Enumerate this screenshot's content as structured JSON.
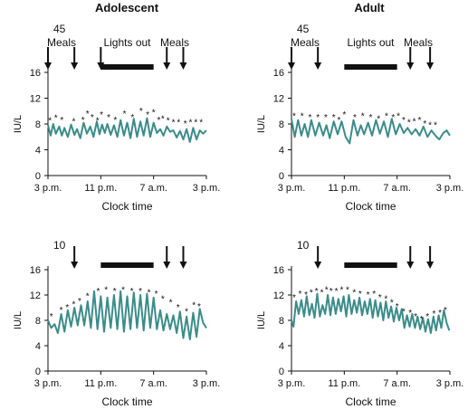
{
  "colors": {
    "series": "#3a8c8a",
    "ink": "#111111",
    "bar": "#111111"
  },
  "panels": [
    {
      "column_title": "Adolescent",
      "corner_number": "45",
      "meal_text_left": "Meals",
      "lights_text": "Lights out",
      "meal_text_right": "Meals",
      "arrow_hours": [
        15,
        19,
        23,
        33,
        35.5
      ],
      "lights_out": [
        23,
        31
      ],
      "chart_data": {
        "type": "line",
        "xlabel": "Clock time",
        "ylabel": "IU/L",
        "xlim": [
          15,
          39
        ],
        "ylim": [
          0,
          16
        ],
        "yticks": [
          "0",
          "4",
          "8",
          "12",
          "16"
        ],
        "xticks": [
          {
            "hour": 15,
            "label": "3 p.m."
          },
          {
            "hour": 23,
            "label": "11 p.m."
          },
          {
            "hour": 31,
            "label": "7 a.m."
          },
          {
            "hour": 39,
            "label": "3 p.m."
          }
        ],
        "series": [
          {
            "x": [
              15.0,
              15.4,
              15.8,
              16.2,
              16.7,
              17.1,
              17.5,
              18.0,
              18.5,
              19.0,
              19.4,
              19.9,
              20.4,
              20.9,
              21.4,
              21.9,
              22.4,
              22.8,
              23.2,
              23.6,
              24.0,
              24.5,
              25.0,
              25.5,
              26.0,
              26.5,
              27.0,
              27.5,
              28.0,
              28.5,
              29.0,
              29.5,
              30.0,
              30.5,
              31.0,
              31.5,
              32.0,
              32.5,
              33.0,
              33.5,
              34.0,
              34.5,
              35.0,
              35.5,
              36.0,
              36.5,
              37.0,
              37.5,
              38.0,
              38.5,
              39.0
            ],
            "y": [
              7.8,
              6.2,
              8.0,
              6.5,
              7.6,
              6.2,
              7.4,
              6.0,
              7.9,
              6.3,
              7.2,
              5.8,
              8.2,
              6.5,
              7.6,
              6.0,
              8.4,
              6.4,
              7.9,
              6.6,
              8.0,
              6.3,
              7.8,
              6.0,
              8.6,
              6.2,
              8.2,
              5.8,
              8.8,
              6.0,
              8.4,
              6.2,
              8.9,
              6.0,
              8.2,
              6.6,
              7.2,
              6.2,
              7.6,
              6.8,
              7.0,
              5.9,
              6.9,
              5.6,
              7.2,
              5.2,
              7.4,
              5.6,
              7.0,
              6.5,
              7.0
            ]
          }
        ],
        "asterisk_x": [
          15.3,
          16.2,
          17.1,
          18.9,
          20.3,
          21.0,
          21.7,
          22.5,
          23.1,
          24.2,
          25.2,
          26.6,
          27.8,
          29.1,
          30.1,
          31.0,
          31.8,
          32.4,
          33.2,
          34.0,
          34.8,
          35.8,
          36.6,
          37.4,
          38.2
        ],
        "asterisk_y": [
          8.9,
          9.3,
          9.0,
          8.8,
          9.0,
          10.0,
          9.4,
          8.9,
          9.8,
          9.4,
          9.0,
          10.0,
          9.4,
          10.4,
          9.8,
          10.2,
          9.0,
          9.2,
          8.9,
          8.6,
          8.6,
          8.4,
          8.6,
          8.6,
          8.6
        ],
        "asterisk_label": "*"
      }
    },
    {
      "column_title": "Adult",
      "corner_number": "45",
      "meal_text_left": "Meals",
      "lights_text": "Lights out",
      "meal_text_right": "Meals",
      "arrow_hours": [
        15,
        19,
        33,
        36
      ],
      "lights_out": [
        23,
        31
      ],
      "chart_data": {
        "type": "line",
        "xlabel": "Clock time",
        "ylabel": "IU/L",
        "xlim": [
          15,
          39
        ],
        "ylim": [
          0,
          16
        ],
        "yticks": [
          "0",
          "4",
          "8",
          "12",
          "16"
        ],
        "xticks": [
          {
            "hour": 15,
            "label": "3 p.m."
          },
          {
            "hour": 23,
            "label": "11 p.m."
          },
          {
            "hour": 31,
            "label": "7 a.m."
          },
          {
            "hour": 39,
            "label": "3 p.m."
          }
        ],
        "series": [
          {
            "x": [
              15.0,
              15.5,
              16.0,
              16.5,
              17.0,
              17.5,
              18.0,
              18.6,
              19.2,
              19.8,
              20.3,
              20.8,
              21.4,
              22.0,
              22.6,
              23.2,
              23.8,
              24.4,
              25.0,
              25.5,
              26.0,
              26.6,
              27.2,
              27.8,
              28.4,
              29.0,
              29.6,
              30.2,
              30.8,
              31.4,
              32.0,
              32.6,
              33.2,
              33.8,
              34.4,
              35.0,
              35.6,
              36.2,
              36.8,
              37.4,
              38.0,
              38.5,
              39.0
            ],
            "y": [
              8.8,
              6.0,
              8.6,
              6.2,
              8.0,
              6.0,
              8.6,
              6.2,
              8.2,
              6.2,
              7.8,
              5.8,
              8.4,
              6.4,
              8.4,
              6.0,
              5.0,
              8.6,
              6.2,
              7.8,
              6.4,
              8.2,
              6.2,
              8.6,
              6.5,
              8.4,
              6.0,
              8.8,
              6.4,
              8.0,
              6.6,
              7.4,
              6.4,
              7.2,
              6.2,
              7.6,
              6.0,
              7.0,
              6.2,
              5.6,
              6.6,
              7.0,
              6.2
            ]
          }
        ],
        "asterisk_x": [
          15.4,
          16.6,
          17.8,
          19.0,
          20.2,
          21.4,
          22.2,
          23.0,
          24.6,
          25.8,
          27.0,
          28.2,
          29.4,
          30.4,
          31.2,
          32.0,
          32.8,
          33.6,
          34.4,
          35.2,
          36.0,
          36.8
        ],
        "asterisk_y": [
          9.6,
          9.6,
          9.4,
          9.4,
          9.4,
          9.4,
          9.0,
          9.8,
          9.4,
          9.6,
          9.4,
          9.2,
          9.6,
          9.4,
          9.6,
          9.0,
          8.6,
          8.8,
          9.0,
          8.4,
          8.2,
          8.2
        ],
        "asterisk_label": "*"
      }
    },
    {
      "column_title": "",
      "corner_number": "10",
      "meal_text_left": "",
      "lights_text": "",
      "meal_text_right": "",
      "arrow_hours": [
        19,
        33,
        35.5
      ],
      "lights_out": [
        23,
        31
      ],
      "chart_data": {
        "type": "line",
        "xlabel": "Clock time",
        "ylabel": "IU/L",
        "xlim": [
          15,
          39
        ],
        "ylim": [
          0,
          16
        ],
        "yticks": [
          "0",
          "4",
          "8",
          "12",
          "16"
        ],
        "xticks": [
          {
            "hour": 15,
            "label": "3 p.m."
          },
          {
            "hour": 23,
            "label": "11 p.m."
          },
          {
            "hour": 31,
            "label": "7 a.m."
          },
          {
            "hour": 39,
            "label": "3 p.m."
          }
        ],
        "series": [
          {
            "x": [
              15.0,
              15.5,
              16.0,
              16.5,
              17.0,
              17.5,
              18.0,
              18.5,
              19.0,
              19.5,
              20.0,
              20.5,
              21.0,
              21.5,
              22.0,
              22.5,
              23.0,
              23.5,
              24.0,
              24.5,
              25.0,
              25.5,
              26.0,
              26.5,
              27.0,
              27.5,
              28.0,
              28.5,
              29.0,
              29.5,
              30.0,
              30.5,
              31.0,
              31.5,
              32.0,
              32.5,
              33.0,
              33.5,
              34.0,
              34.5,
              35.0,
              35.5,
              36.0,
              36.5,
              37.0,
              37.5,
              38.0,
              38.5,
              39.0
            ],
            "y": [
              8.0,
              6.8,
              7.4,
              6.0,
              9.0,
              6.2,
              9.6,
              7.0,
              10.0,
              7.2,
              10.4,
              7.2,
              11.0,
              6.8,
              12.6,
              6.6,
              11.8,
              6.2,
              11.6,
              6.8,
              12.0,
              6.6,
              12.6,
              6.2,
              11.8,
              6.6,
              12.4,
              6.8,
              12.0,
              6.4,
              12.2,
              6.8,
              11.6,
              6.6,
              9.6,
              6.4,
              9.0,
              6.6,
              8.8,
              6.0,
              9.4,
              5.2,
              8.6,
              5.0,
              9.2,
              5.4,
              9.8,
              7.6,
              6.8
            ]
          }
        ],
        "asterisk_x": [
          15.5,
          17.0,
          17.9,
          18.9,
          19.8,
          21.0,
          22.6,
          23.8,
          25.1,
          26.4,
          27.7,
          29.0,
          30.3,
          31.4,
          32.4,
          33.6,
          34.7,
          36.0,
          37.1,
          37.9
        ],
        "asterisk_y": [
          9.0,
          10.0,
          10.4,
          10.9,
          11.4,
          12.2,
          13.0,
          13.2,
          13.0,
          13.2,
          13.0,
          13.0,
          12.8,
          12.6,
          11.8,
          11.2,
          10.4,
          9.8,
          10.8,
          10.6
        ],
        "asterisk_label": "*"
      }
    },
    {
      "column_title": "",
      "corner_number": "10",
      "meal_text_left": "",
      "lights_text": "",
      "meal_text_right": "",
      "arrow_hours": [
        19,
        33,
        36
      ],
      "lights_out": [
        23,
        31
      ],
      "chart_data": {
        "type": "line",
        "xlabel": "Clock time",
        "ylabel": "IU/L",
        "xlim": [
          15,
          39
        ],
        "ylim": [
          0,
          16
        ],
        "yticks": [
          "0",
          "4",
          "8",
          "12",
          "16"
        ],
        "xticks": [
          {
            "hour": 15,
            "label": "3 p.m."
          },
          {
            "hour": 23,
            "label": "11 p.m."
          },
          {
            "hour": 31,
            "label": "7 a.m."
          },
          {
            "hour": 39,
            "label": "3 p.m."
          }
        ],
        "series": [
          {
            "x": [
              15.0,
              15.3,
              15.7,
              16.1,
              16.5,
              16.9,
              17.3,
              17.7,
              18.1,
              18.5,
              18.9,
              19.3,
              19.7,
              20.1,
              20.5,
              20.9,
              21.3,
              21.7,
              22.1,
              22.5,
              22.9,
              23.3,
              23.7,
              24.1,
              24.5,
              24.9,
              25.3,
              25.7,
              26.1,
              26.5,
              26.9,
              27.3,
              27.7,
              28.1,
              28.5,
              28.9,
              29.3,
              29.7,
              30.1,
              30.5,
              30.9,
              31.3,
              31.7,
              32.1,
              32.5,
              32.9,
              33.3,
              33.7,
              34.1,
              34.5,
              34.9,
              35.3,
              35.7,
              36.1,
              36.5,
              36.9,
              37.3,
              37.7,
              38.1,
              38.5,
              38.9
            ],
            "y": [
              8.0,
              7.0,
              11.0,
              9.0,
              11.2,
              8.6,
              11.8,
              8.8,
              10.6,
              8.4,
              12.2,
              8.6,
              10.4,
              9.0,
              12.0,
              8.8,
              11.6,
              9.0,
              11.4,
              9.4,
              11.8,
              8.6,
              12.0,
              9.0,
              11.2,
              9.2,
              11.6,
              8.8,
              11.0,
              9.0,
              11.4,
              8.4,
              11.2,
              8.6,
              10.8,
              8.0,
              11.0,
              8.4,
              10.2,
              7.8,
              10.0,
              8.0,
              9.8,
              6.8,
              8.8,
              7.0,
              9.0,
              6.8,
              8.6,
              6.6,
              8.4,
              6.2,
              8.2,
              6.0,
              8.6,
              6.4,
              8.8,
              6.8,
              9.6,
              7.6,
              6.4
            ]
          }
        ],
        "asterisk_x": [
          15.4,
          16.3,
          17.2,
          18.0,
          18.8,
          19.6,
          20.3,
          21.0,
          21.8,
          22.6,
          23.5,
          24.5,
          25.4,
          26.6,
          27.5,
          28.4,
          29.3,
          30.2,
          31.0,
          32.0,
          33.0,
          33.8,
          34.7,
          35.6,
          36.6,
          37.5,
          38.3
        ],
        "asterisk_y": [
          12.0,
          12.6,
          12.4,
          12.8,
          13.0,
          12.8,
          13.2,
          13.0,
          13.0,
          13.2,
          13.2,
          12.8,
          12.6,
          12.4,
          12.6,
          12.0,
          11.8,
          11.2,
          10.6,
          9.8,
          9.6,
          9.0,
          8.6,
          9.0,
          9.4,
          9.6,
          10.0
        ],
        "asterisk_label": "*"
      }
    }
  ]
}
